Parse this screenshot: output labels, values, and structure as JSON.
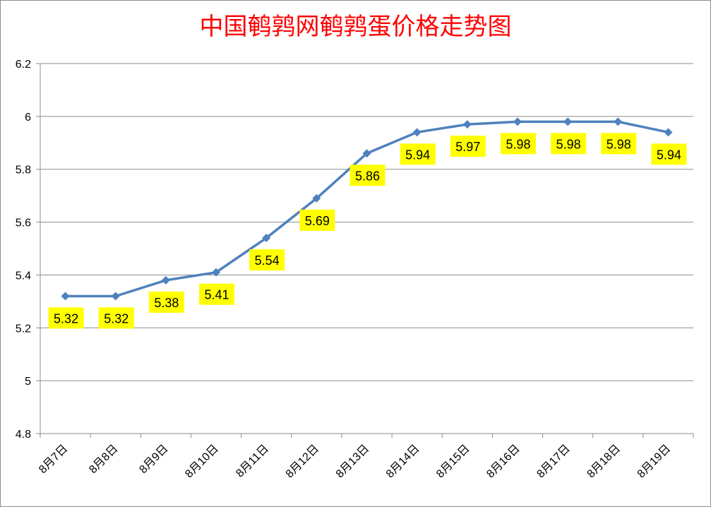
{
  "chart_data": {
    "type": "line",
    "title": "中国鹌鹑网鹌鹑蛋价格走势图",
    "categories": [
      "8月7日",
      "8月8日",
      "8月9日",
      "8月10日",
      "8月11日",
      "8月12日",
      "8月13日",
      "8月14日",
      "8月15日",
      "8月16日",
      "8月17日",
      "8月18日",
      "8月19日"
    ],
    "series": [
      {
        "values": [
          5.32,
          5.32,
          5.38,
          5.41,
          5.54,
          5.69,
          5.86,
          5.94,
          5.97,
          5.98,
          5.98,
          5.98,
          5.94
        ],
        "labels": [
          "5.32",
          "5.32",
          "5.38",
          "5.41",
          "5.54",
          "5.69",
          "5.86",
          "5.94",
          "5.97",
          "5.98",
          "5.98",
          "5.98",
          "5.94"
        ],
        "color": "#4f81bd"
      }
    ],
    "yticks": [
      "4.8",
      "5",
      "5.2",
      "5.4",
      "5.6",
      "5.8",
      "6",
      "6.2"
    ],
    "ylim": [
      4.8,
      6.2
    ],
    "grid": true,
    "legend": "none",
    "label_background": "#ffff00",
    "title_color": "#ff0000"
  }
}
